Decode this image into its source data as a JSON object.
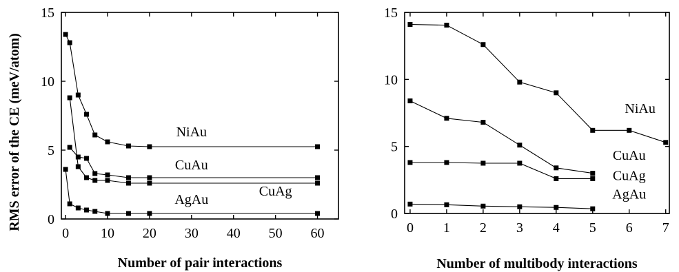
{
  "chart_data": [
    {
      "type": "line",
      "xlabel": "Number of pair interactions",
      "ylabel": "RMS error of the CE (meV/atom)",
      "xlim": [
        -1,
        65
      ],
      "ylim": [
        0,
        15
      ],
      "xticks": [
        0,
        10,
        20,
        30,
        40,
        50,
        60
      ],
      "yticks": [
        0,
        5,
        10,
        15
      ],
      "grid": false,
      "series": [
        {
          "name": "NiAu",
          "x": [
            0,
            1,
            3,
            5,
            7,
            10,
            15,
            20,
            60
          ],
          "y": [
            13.4,
            12.8,
            9.0,
            7.6,
            6.1,
            5.6,
            5.3,
            5.25,
            5.25
          ]
        },
        {
          "name": "CuAu",
          "x": [
            1,
            3,
            5,
            7,
            10,
            15,
            20,
            60
          ],
          "y": [
            5.2,
            4.5,
            4.4,
            3.3,
            3.2,
            3.0,
            3.0,
            3.0
          ]
        },
        {
          "name": "CuAg",
          "x": [
            1,
            3,
            5,
            7,
            10,
            15,
            20,
            60
          ],
          "y": [
            8.8,
            3.8,
            3.0,
            2.8,
            2.8,
            2.6,
            2.6,
            2.6
          ]
        },
        {
          "name": "AgAu",
          "x": [
            0,
            1,
            3,
            5,
            7,
            10,
            15,
            20,
            60
          ],
          "y": [
            3.6,
            1.1,
            0.8,
            0.65,
            0.55,
            0.4,
            0.4,
            0.4,
            0.4
          ]
        }
      ],
      "labels": [
        {
          "text": "NiAu",
          "x": 30,
          "y": 6.0
        },
        {
          "text": "CuAu",
          "x": 30,
          "y": 3.6
        },
        {
          "text": "CuAg",
          "x": 50,
          "y": 1.7
        },
        {
          "text": "AgAu",
          "x": 30,
          "y": 1.1
        }
      ]
    },
    {
      "type": "line",
      "xlabel": "Number of multibody interactions",
      "ylabel": "",
      "xlim": [
        -0.15,
        7.1
      ],
      "ylim": [
        0,
        15
      ],
      "xticks": [
        0,
        1,
        2,
        3,
        4,
        5,
        6,
        7
      ],
      "yticks": [
        0,
        5,
        10,
        15
      ],
      "grid": false,
      "series": [
        {
          "name": "NiAu",
          "x": [
            0,
            1,
            2,
            3,
            4,
            5,
            6,
            7
          ],
          "y": [
            14.1,
            14.05,
            12.6,
            9.8,
            9.0,
            6.2,
            6.2,
            5.3
          ]
        },
        {
          "name": "CuAu",
          "x": [
            0,
            1,
            2,
            3,
            4,
            5
          ],
          "y": [
            8.4,
            7.1,
            6.8,
            5.1,
            3.4,
            3.0
          ]
        },
        {
          "name": "CuAg",
          "x": [
            0,
            1,
            2,
            3,
            4,
            5
          ],
          "y": [
            3.8,
            3.8,
            3.75,
            3.75,
            2.6,
            2.6
          ]
        },
        {
          "name": "AgAu",
          "x": [
            0,
            1,
            2,
            3,
            4,
            5
          ],
          "y": [
            0.7,
            0.65,
            0.55,
            0.5,
            0.45,
            0.35
          ]
        }
      ],
      "labels": [
        {
          "text": "NiAu",
          "x": 6.3,
          "y": 7.5
        },
        {
          "text": "CuAu",
          "x": 6.0,
          "y": 4.0
        },
        {
          "text": "CuAg",
          "x": 6.0,
          "y": 2.5
        },
        {
          "text": "AgAu",
          "x": 6.0,
          "y": 1.1
        }
      ]
    }
  ]
}
